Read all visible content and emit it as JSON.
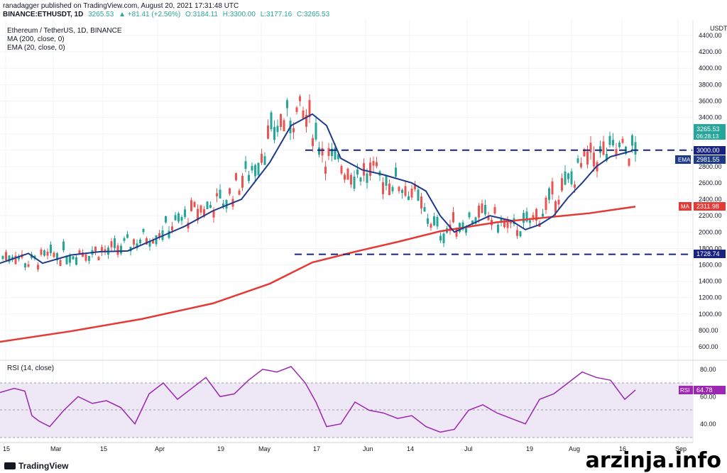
{
  "header": {
    "line1": "ranadagger published on TradingView.com, August 20, 2021 17:31:48 UTC",
    "symbol": "BINANCE:ETHUSDT, 1D",
    "last": "3265.53",
    "change": "▲ +81.41 (+2.56%)",
    "open": "O:3184.11",
    "high": "H:3300.00",
    "low": "L:3177.16",
    "close": "C:3265.53"
  },
  "legend": {
    "title": "Ethereum / TetherUS, 1D, BINANCE",
    "ma": "MA (200, close, 0)",
    "ema": "EMA (20, close, 0)",
    "rsi": "RSI (14, close)"
  },
  "axis": {
    "currency": "USDT",
    "price_ticks": [
      "4400.00",
      "4200.00",
      "4000.00",
      "3800.00",
      "3600.00",
      "3400.00",
      "3200.00",
      "3000.00",
      "2800.00",
      "2600.00",
      "2400.00",
      "2200.00",
      "2000.00",
      "1800.00",
      "1600.00",
      "1400.00",
      "1200.00",
      "1000.00",
      "800.00",
      "600.00"
    ],
    "rsi_ticks": [
      "80.00",
      "60.00",
      "40.00"
    ],
    "time_ticks": [
      "15",
      "Mar",
      "15",
      "Apr",
      "19",
      "May",
      "17",
      "Jun",
      "14",
      "Jul",
      "19",
      "Aug",
      "16",
      "Sep"
    ]
  },
  "labels": {
    "price_now": "3265.53",
    "countdown": "06:28:13",
    "resistance": "3000.00",
    "ema_tag": "EMA",
    "ema_value": "2981.55",
    "ma_tag": "MA",
    "ma_value": "2311.98",
    "support": "1728.74",
    "rsi_tag": "RSI",
    "rsi_value": "64.78"
  },
  "colors": {
    "up": "#26a69a",
    "down": "#ef5350",
    "ema": "#1e3a8a",
    "ma": "#e53935",
    "rsi": "#9c27b0",
    "level": "#1a237e"
  },
  "chart_data": {
    "type": "candlestick",
    "levels": [
      3000,
      1728.74
    ],
    "ema_path": [
      [
        0,
        1620
      ],
      [
        40,
        1740
      ],
      [
        60,
        1620
      ],
      [
        100,
        1720
      ],
      [
        140,
        1760
      ],
      [
        180,
        1770
      ],
      [
        220,
        1920
      ],
      [
        260,
        2070
      ],
      [
        300,
        2260
      ],
      [
        340,
        2400
      ],
      [
        380,
        2850
      ],
      [
        410,
        3300
      ],
      [
        440,
        3440
      ],
      [
        460,
        3300
      ],
      [
        480,
        2900
      ],
      [
        510,
        2760
      ],
      [
        540,
        2700
      ],
      [
        580,
        2600
      ],
      [
        600,
        2500
      ],
      [
        620,
        2200
      ],
      [
        640,
        2000
      ],
      [
        660,
        2080
      ],
      [
        690,
        2200
      ],
      [
        720,
        2140
      ],
      [
        740,
        2030
      ],
      [
        760,
        2090
      ],
      [
        780,
        2200
      ],
      [
        800,
        2420
      ],
      [
        820,
        2600
      ],
      [
        840,
        2800
      ],
      [
        860,
        2920
      ],
      [
        890,
        2990
      ]
    ],
    "ma_path": [
      [
        0,
        660
      ],
      [
        100,
        790
      ],
      [
        200,
        940
      ],
      [
        300,
        1130
      ],
      [
        380,
        1370
      ],
      [
        440,
        1630
      ],
      [
        500,
        1760
      ],
      [
        560,
        1880
      ],
      [
        620,
        2010
      ],
      [
        700,
        2120
      ],
      [
        760,
        2170
      ],
      [
        830,
        2230
      ],
      [
        895,
        2311
      ]
    ],
    "rsi_path": [
      [
        0,
        63
      ],
      [
        20,
        66
      ],
      [
        35,
        64
      ],
      [
        45,
        46
      ],
      [
        55,
        42
      ],
      [
        70,
        38
      ],
      [
        90,
        50
      ],
      [
        110,
        60
      ],
      [
        130,
        55
      ],
      [
        150,
        57
      ],
      [
        170,
        52
      ],
      [
        190,
        40
      ],
      [
        210,
        62
      ],
      [
        230,
        70
      ],
      [
        250,
        58
      ],
      [
        270,
        66
      ],
      [
        290,
        74
      ],
      [
        310,
        60
      ],
      [
        330,
        62
      ],
      [
        350,
        72
      ],
      [
        370,
        80
      ],
      [
        390,
        78
      ],
      [
        410,
        82
      ],
      [
        430,
        70
      ],
      [
        445,
        56
      ],
      [
        460,
        38
      ],
      [
        480,
        40
      ],
      [
        500,
        56
      ],
      [
        520,
        50
      ],
      [
        540,
        48
      ],
      [
        560,
        44
      ],
      [
        580,
        46
      ],
      [
        600,
        38
      ],
      [
        620,
        34
      ],
      [
        640,
        36
      ],
      [
        660,
        50
      ],
      [
        680,
        54
      ],
      [
        700,
        48
      ],
      [
        720,
        44
      ],
      [
        740,
        40
      ],
      [
        760,
        58
      ],
      [
        780,
        62
      ],
      [
        800,
        70
      ],
      [
        820,
        78
      ],
      [
        840,
        74
      ],
      [
        860,
        72
      ],
      [
        880,
        58
      ],
      [
        895,
        64.78
      ]
    ]
  }
}
